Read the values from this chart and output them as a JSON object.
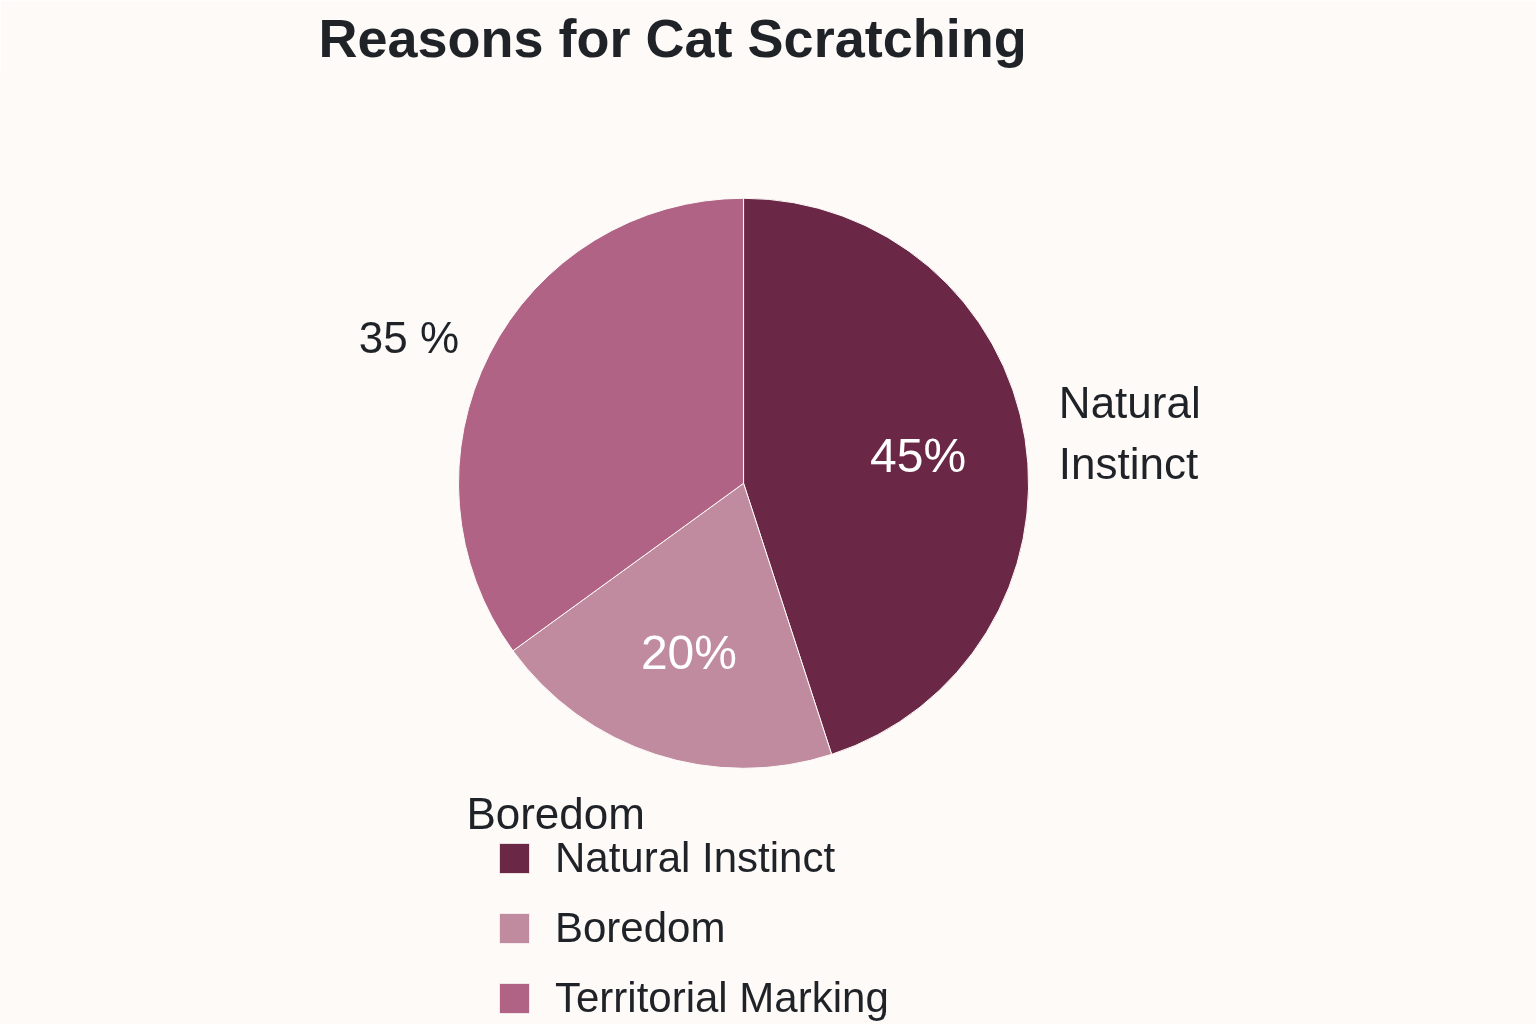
{
  "chart_data": {
    "type": "pie",
    "title": "Reasons for Cat Scratching",
    "categories": [
      "Natural Instinct",
      "Boredom",
      "Territorial Marking"
    ],
    "values": [
      45,
      20,
      35
    ],
    "colors": [
      "#6b2746",
      "#c08a9f",
      "#b06384"
    ],
    "value_labels": [
      "45%",
      "20%",
      "35 %"
    ],
    "annotations": [
      {
        "text": "Natural\nInstinct",
        "x": "Natural Instinct"
      },
      {
        "text": "Boredom",
        "x": "Boredom"
      }
    ],
    "legend": "bottom"
  }
}
